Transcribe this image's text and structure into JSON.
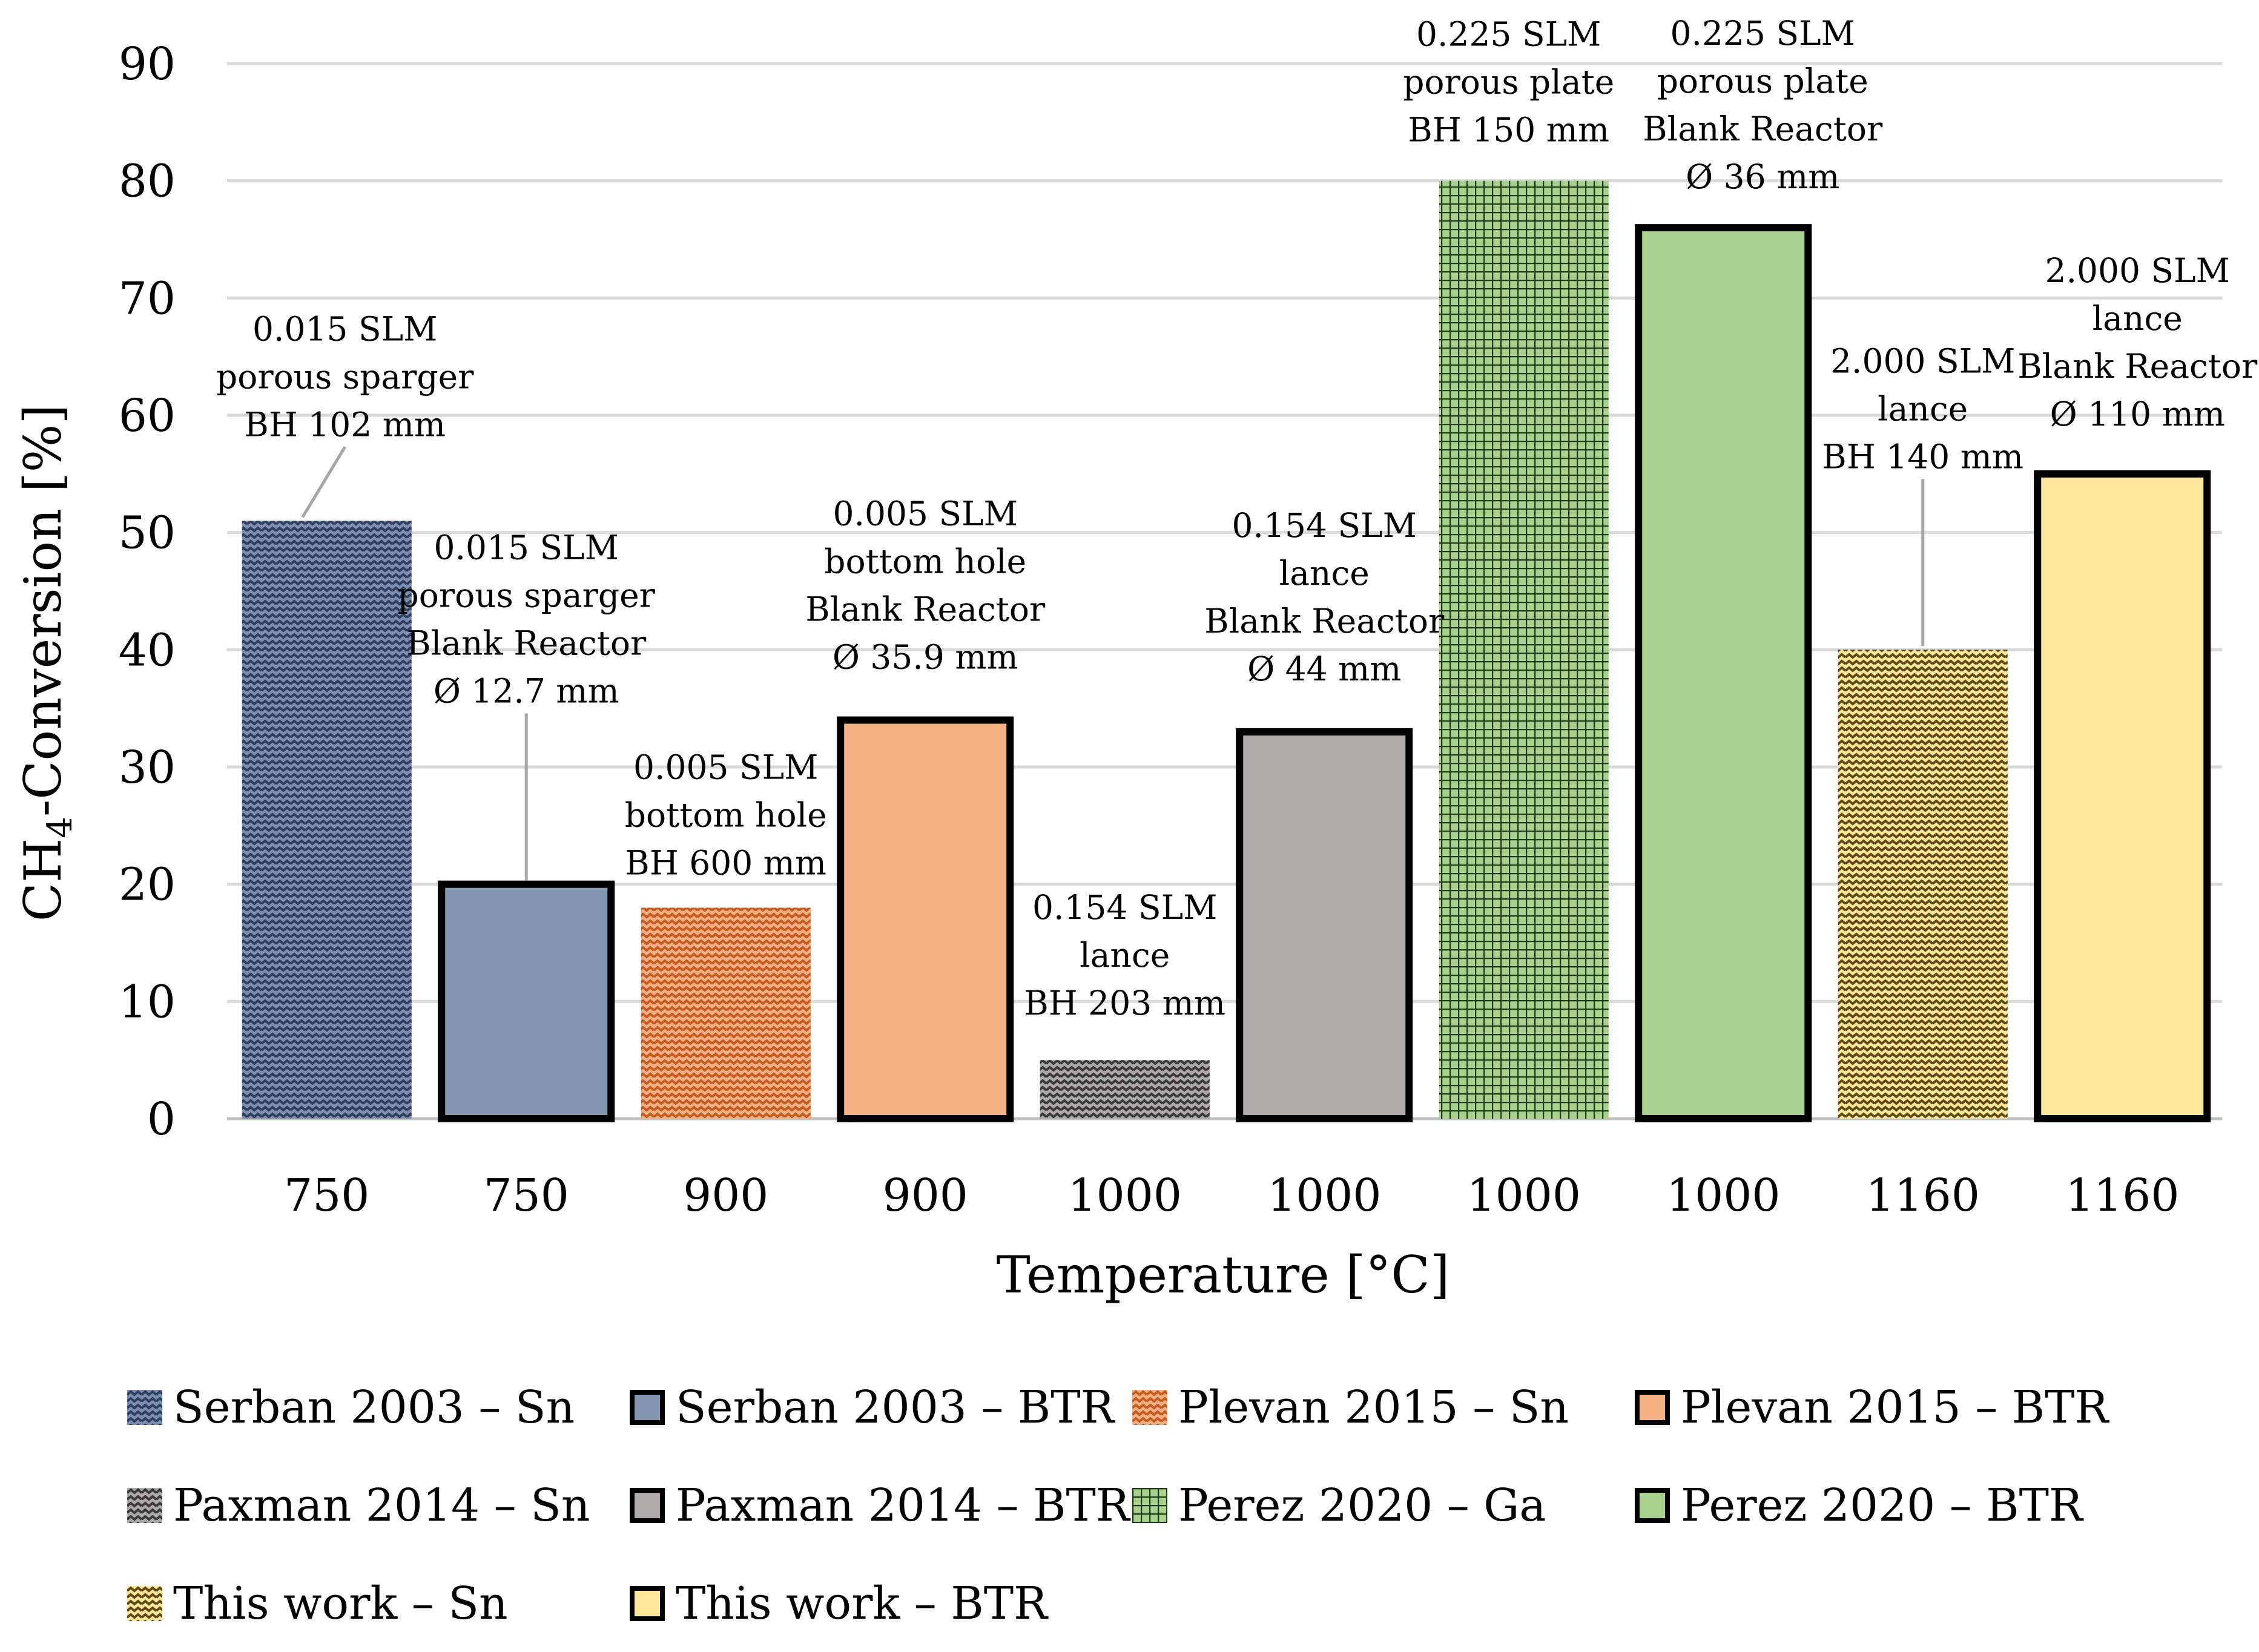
{
  "chart_data": {
    "type": "bar",
    "title": "",
    "xlabel": "Temperature [°C]",
    "ylabel_main": "CH",
    "ylabel_sub": "4",
    "ylabel_rest": "-Conversion [%]",
    "ylim": [
      0,
      90
    ],
    "yticks": [
      0,
      10,
      20,
      30,
      40,
      50,
      60,
      70,
      80,
      90
    ],
    "grid": true,
    "legend_position": "bottom",
    "categories": [
      "750",
      "750",
      "900",
      "900",
      "1000",
      "1000",
      "1000",
      "1000",
      "1160",
      "1160"
    ],
    "bars": [
      {
        "series": "Serban 2003 – Sn",
        "value": 51,
        "annotation": [
          "0.015 SLM",
          "porous sparger",
          "BH 102 mm"
        ]
      },
      {
        "series": "Serban 2003 – BTR",
        "value": 20,
        "annotation": [
          "0.015 SLM",
          "porous sparger",
          "Blank Reactor",
          "Ø 12.7 mm"
        ]
      },
      {
        "series": "Plevan 2015 – Sn",
        "value": 18,
        "annotation": [
          "0.005 SLM",
          "bottom hole",
          "BH 600 mm"
        ]
      },
      {
        "series": "Plevan 2015 – BTR",
        "value": 34,
        "annotation": [
          "0.005 SLM",
          "bottom hole",
          "Blank Reactor",
          "Ø 35.9 mm"
        ]
      },
      {
        "series": "Paxman 2014 – Sn",
        "value": 5,
        "annotation": [
          "0.154 SLM",
          "lance",
          "BH 203 mm"
        ]
      },
      {
        "series": "Paxman 2014 – BTR",
        "value": 33,
        "annotation": [
          "0.154 SLM",
          "lance",
          "Blank Reactor",
          "Ø 44 mm"
        ]
      },
      {
        "series": "Perez 2020 – Ga",
        "value": 80,
        "annotation": [
          "0.225 SLM",
          "porous plate",
          "BH 150 mm"
        ]
      },
      {
        "series": "Perez 2020 – BTR",
        "value": 76,
        "annotation": [
          "0.225 SLM",
          "porous plate",
          "Blank Reactor",
          "Ø 36 mm"
        ]
      },
      {
        "series": "This work – Sn",
        "value": 40,
        "annotation": [
          "2.000 SLM",
          "lance",
          "BH 140 mm"
        ]
      },
      {
        "series": "This work  – BTR",
        "value": 55,
        "annotation": [
          "2.000 SLM",
          "lance",
          "Blank Reactor",
          "Ø 110 mm"
        ]
      }
    ],
    "legend": [
      {
        "label": "Serban 2003 – Sn",
        "pattern": "zigzag",
        "color": "#7b8fb0",
        "ink": "#2f3f5c"
      },
      {
        "label": "Serban 2003 – BTR",
        "pattern": "solid",
        "color": "#8497b0"
      },
      {
        "label": "Plevan 2015 – Sn",
        "pattern": "zigzag",
        "color": "#f4b183",
        "ink": "#c65a22"
      },
      {
        "label": "Plevan 2015 – BTR",
        "pattern": "solid",
        "color": "#f4b183"
      },
      {
        "label": "Paxman 2014 – Sn",
        "pattern": "zigzag",
        "color": "#aeaaaa",
        "ink": "#3a3a3a"
      },
      {
        "label": "Paxman 2014 – BTR",
        "pattern": "solid",
        "color": "#aeaaaa"
      },
      {
        "label": "Perez 2020 – Ga",
        "pattern": "grid",
        "color": "#a9d18e",
        "ink": "#1f3d14"
      },
      {
        "label": "Perez 2020 – BTR",
        "pattern": "solid",
        "color": "#a9d18e"
      },
      {
        "label": "This work – Sn",
        "pattern": "zigzag",
        "color": "#ffe699",
        "ink": "#5c4a12"
      },
      {
        "label": "This work  – BTR",
        "pattern": "solid",
        "color": "#ffe699"
      }
    ]
  }
}
